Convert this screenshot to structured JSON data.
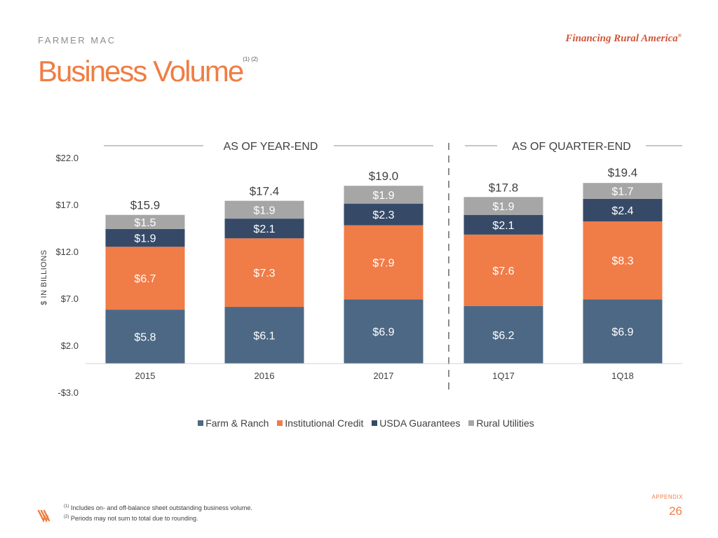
{
  "header": {
    "brand": "FARMER MAC",
    "tagline": "Financing Rural America",
    "tagline_mark": "®",
    "title": "Business Volume",
    "title_footnote_refs": "(1) (2)"
  },
  "sections": {
    "left": "AS OF YEAR-END",
    "right": "AS OF QUARTER-END"
  },
  "chart_data": {
    "type": "bar",
    "stacked": true,
    "ylabel": "$ IN BILLIONS",
    "ylim": [
      -3.0,
      22.0
    ],
    "yticks": [
      -3.0,
      2.0,
      7.0,
      12.0,
      17.0,
      22.0
    ],
    "ytick_labels": [
      "-$3.0",
      "$2.0",
      "$7.0",
      "$12.0",
      "$17.0",
      "$22.0"
    ],
    "categories": [
      "2015",
      "2016",
      "2017",
      "1Q17",
      "1Q18"
    ],
    "series": [
      {
        "name": "Farm & Ranch",
        "color": "#4c6885",
        "values": [
          5.8,
          6.1,
          6.9,
          6.2,
          6.9
        ],
        "labels": [
          "$5.8",
          "$6.1",
          "$6.9",
          "$6.2",
          "$6.9"
        ]
      },
      {
        "name": "Institutional Credit",
        "color": "#f07c48",
        "values": [
          6.7,
          7.3,
          7.9,
          7.6,
          8.3
        ],
        "labels": [
          "$6.7",
          "$7.3",
          "$7.9",
          "$7.6",
          "$8.3"
        ]
      },
      {
        "name": "USDA Guarantees",
        "color": "#364a68",
        "values": [
          1.9,
          2.1,
          2.3,
          2.1,
          2.4
        ],
        "labels": [
          "$1.9",
          "$2.1",
          "$2.3",
          "$2.1",
          "$2.4"
        ]
      },
      {
        "name": "Rural Utilities",
        "color": "#a6a6a6",
        "values": [
          1.5,
          1.9,
          1.9,
          1.9,
          1.7
        ],
        "labels": [
          "$1.5",
          "$1.9",
          "$1.9",
          "$1.9",
          "$1.7"
        ]
      }
    ],
    "totals": [
      15.9,
      17.4,
      19.0,
      17.8,
      19.4
    ],
    "total_labels": [
      "$15.9",
      "$17.4",
      "$19.0",
      "$17.8",
      "$19.4"
    ],
    "legend_position": "bottom",
    "grid": false
  },
  "footer": {
    "appendix": "APPENDIX",
    "page_number": "26",
    "footnote_1_ref": "(1)",
    "footnote_1": "Includes on- and off-balance sheet outstanding business volume.",
    "footnote_2_ref": "(2)",
    "footnote_2": "Periods may not sum to total due to rounding."
  }
}
